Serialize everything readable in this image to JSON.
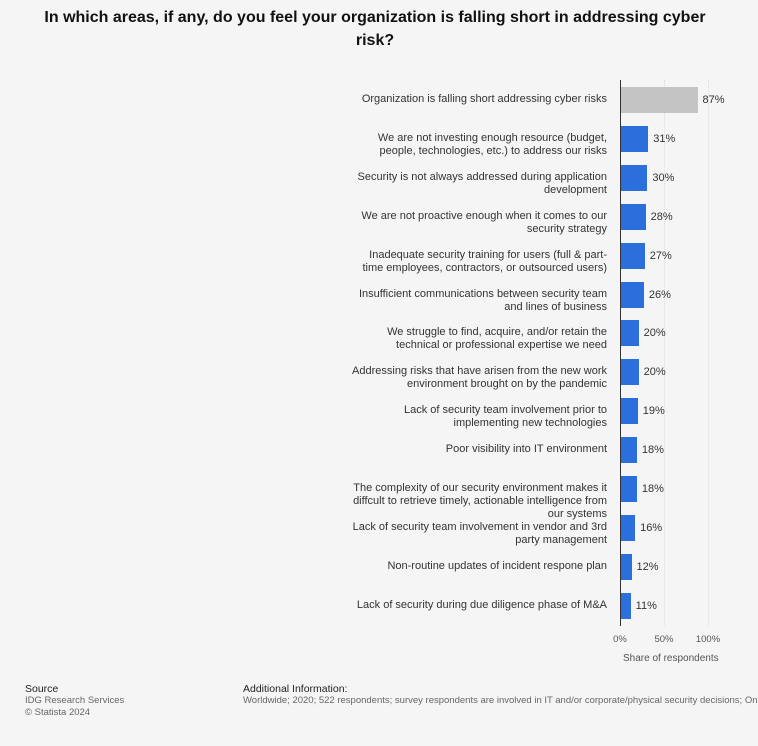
{
  "chart_data": {
    "type": "bar",
    "orientation": "horizontal",
    "title": "In which areas, if any, do you feel your organization is falling short in addressing cyber risk?",
    "categories": [
      "Organization is falling short addressing cyber risks",
      "We are not investing enough resource (budget, people, technologies, etc.) to address our risks",
      "Security is not always addressed during application development",
      "We are not proactive enough when it comes to our security strategy",
      "Inadequate security training for users (full & part-time employees, contractors, or outsourced users)",
      "Insufficient communications between security team and lines of business",
      "We struggle to find, acquire, and/or retain the technical or professional expertise we need",
      "Addressing risks that have arisen from the new work environment brought on by the pandemic",
      "Lack of security team involvement prior to implementing new technologies",
      "Poor visibility into IT environment",
      "The complexity of our security environment makes it diffcult to retrieve timely, actionable intelligence from our systems",
      "Lack of security team involvement in vendor and 3rd party management",
      "Non-routine updates of incident respone plan",
      "Lack of security during due diligence phase of M&A"
    ],
    "values": [
      87,
      31,
      30,
      28,
      27,
      26,
      20,
      20,
      19,
      18,
      18,
      16,
      12,
      11
    ],
    "value_labels": [
      "87%",
      "31%",
      "30%",
      "28%",
      "27%",
      "26%",
      "20%",
      "20%",
      "19%",
      "18%",
      "18%",
      "16%",
      "12%",
      "11%"
    ],
    "colors": [
      "#c4c4c4",
      "#2a6fdb",
      "#2a6fdb",
      "#2a6fdb",
      "#2a6fdb",
      "#2a6fdb",
      "#2a6fdb",
      "#2a6fdb",
      "#2a6fdb",
      "#2a6fdb",
      "#2a6fdb",
      "#2a6fdb",
      "#2a6fdb",
      "#2a6fdb"
    ],
    "xlim": [
      0,
      100
    ],
    "xticks": [
      {
        "value": 0,
        "label": "0%"
      },
      {
        "value": 50,
        "label": "50%"
      },
      {
        "value": 100,
        "label": "100%"
      }
    ],
    "x_label": "Share of respondents",
    "grid": true,
    "source_heading": "Source",
    "source": "IDG Research Services",
    "copyright": "© Statista 2024",
    "info_heading": "Additional Information:",
    "info": "Worldwide; 2020; 522 respondents; survey respondents are involved in IT and/or corporate/physical security decisions; On"
  }
}
